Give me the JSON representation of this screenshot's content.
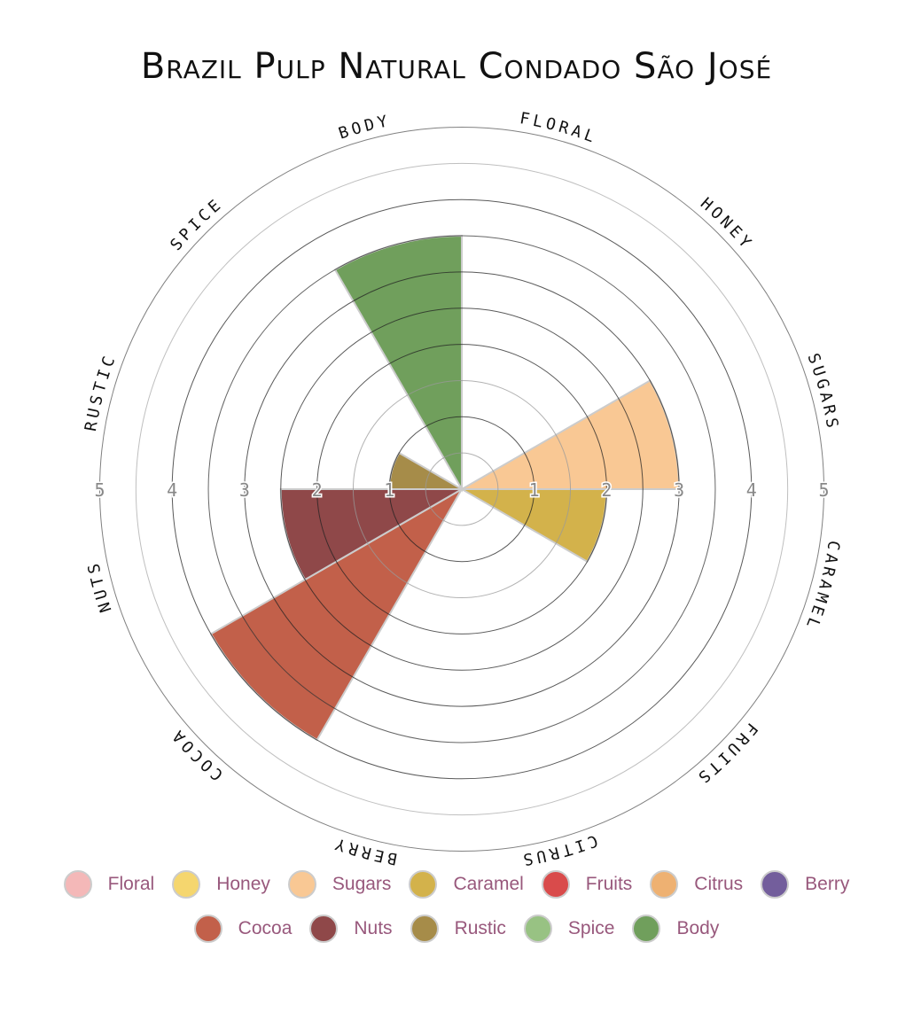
{
  "chart_data": {
    "type": "polar-area",
    "title": "Brazil Pulp Natural Condado São José",
    "categories": [
      "Floral",
      "Honey",
      "Sugars",
      "Caramel",
      "Fruits",
      "Citrus",
      "Berry",
      "Cocoa",
      "Nuts",
      "Rustic",
      "Spice",
      "Body"
    ],
    "values": [
      0,
      0,
      3,
      2,
      0,
      0,
      0,
      4,
      2.5,
      1,
      0,
      3.5
    ],
    "colors": [
      "#f4b8b8",
      "#f5d66e",
      "#f9c894",
      "#d3b24b",
      "#d94b4b",
      "#eeb172",
      "#735e9c",
      "#c2604a",
      "#8f4849",
      "#a68c49",
      "#98c283",
      "#709f5c"
    ],
    "rlim": [
      0,
      5
    ],
    "r_ticks": [
      "1",
      "2",
      "3",
      "4",
      "5"
    ],
    "legend_position": "bottom"
  }
}
